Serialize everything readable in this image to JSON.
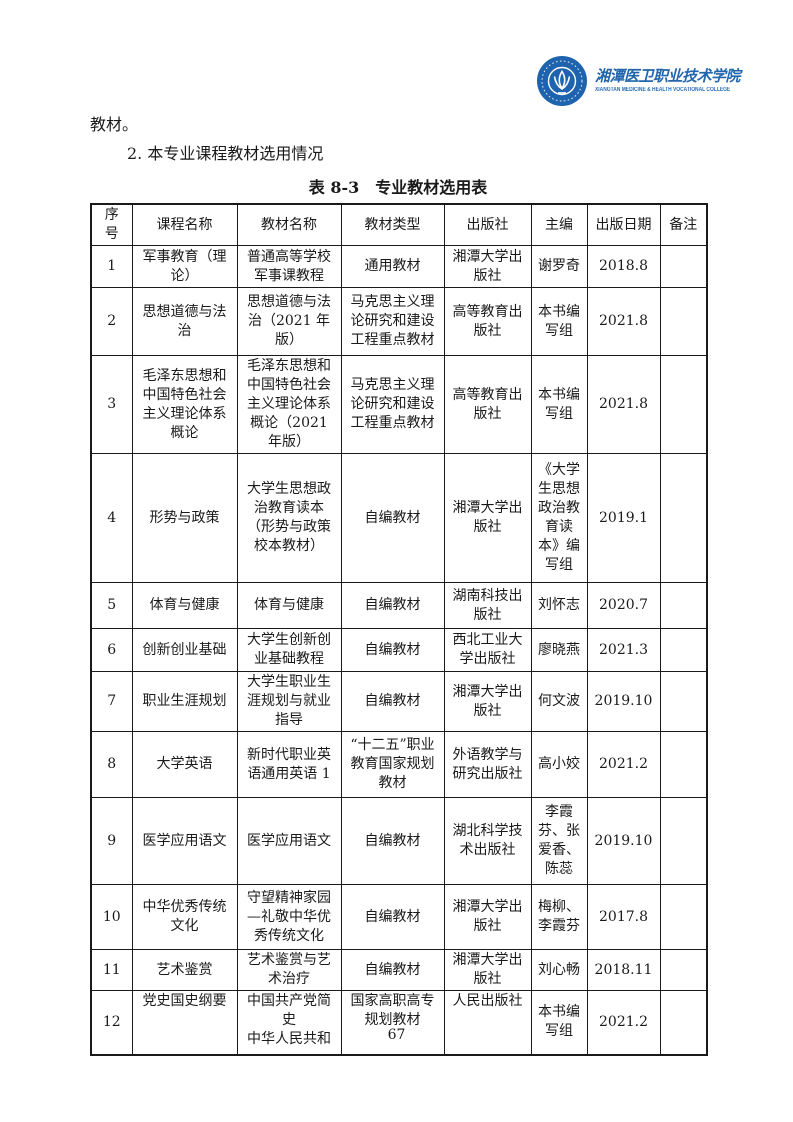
{
  "page": {
    "paragraph_tail": "教材。",
    "section_heading": "2. 本专业课程教材选用情况",
    "table_caption": "表 8-3　专业教材选用表",
    "page_number": "67"
  },
  "logo": {
    "college_name_cn": "湘潭医卫职业技术学院",
    "college_name_en": "XIANGTAN MEDICINE & HEALTH VOCATIONAL COLLEGE",
    "brand_color": "#1e63ae"
  },
  "table": {
    "headers": [
      "序号",
      "课程名称",
      "教材名称",
      "教材类型",
      "出版社",
      "主编",
      "出版日期",
      "备注"
    ],
    "rows": [
      [
        "1",
        "军事教育（理论）",
        "普通高等学校军事课教程",
        "通用教材",
        "湘潭大学出版社",
        "谢罗奇",
        "2018.8",
        ""
      ],
      [
        "2",
        "思想道德与法治",
        "思想道德与法治（2021 年版）",
        "马克思主义理论研究和建设工程重点教材",
        "高等教育出版社",
        "本书编写组",
        "2021.8",
        ""
      ],
      [
        "3",
        "毛泽东思想和中国特色社会主义理论体系概论",
        "毛泽东思想和中国特色社会主义理论体系概论（2021 年版）",
        "马克思主义理论研究和建设工程重点教材",
        "高等教育出版社",
        "本书编写组",
        "2021.8",
        ""
      ],
      [
        "4",
        "形势与政策",
        "大学生思想政治教育读本（形势与政策校本教材）",
        "自编教材",
        "湘潭大学出版社",
        "《大学生思想政治教育读本》编写组",
        "2019.1",
        ""
      ],
      [
        "5",
        "体育与健康",
        "体育与健康",
        "自编教材",
        "湖南科技出版社",
        "刘怀志",
        "2020.7",
        ""
      ],
      [
        "6",
        "创新创业基础",
        "大学生创新创业基础教程",
        "自编教材",
        "西北工业大学出版社",
        "廖晓燕",
        "2021.3",
        ""
      ],
      [
        "7",
        "职业生涯规划",
        "大学生职业生涯规划与就业指导",
        "自编教材",
        "湘潭大学出版社",
        "何文波",
        "2019.10",
        ""
      ],
      [
        "8",
        "大学英语",
        "新时代职业英语通用英语 1",
        "“十二五”职业教育国家规划教材",
        "外语教学与研究出版社",
        "高小姣",
        "2021.2",
        ""
      ],
      [
        "9",
        "医学应用语文",
        "医学应用语文",
        "自编教材",
        "湖北科学技术出版社",
        "李霞芬、张爱香、陈蕊",
        "2019.10",
        ""
      ],
      [
        "10",
        "中华优秀传统文化",
        "守望精神家园—礼敬中华优秀传统文化",
        "自编教材",
        "湘潭大学出版社",
        "梅柳、李霞芬",
        "2017.8",
        ""
      ],
      [
        "11",
        "艺术鉴赏",
        "艺术鉴赏与艺术治疗",
        "自编教材",
        "湘潭大学出版社",
        "刘心畅",
        "2018.11",
        ""
      ],
      [
        "12",
        "党史国史纲要",
        "中国共产党简\n史\n中华人民共和",
        "国家高职高专规划教材",
        "人民出版社",
        "本书编写组",
        "2021.2",
        ""
      ]
    ]
  }
}
